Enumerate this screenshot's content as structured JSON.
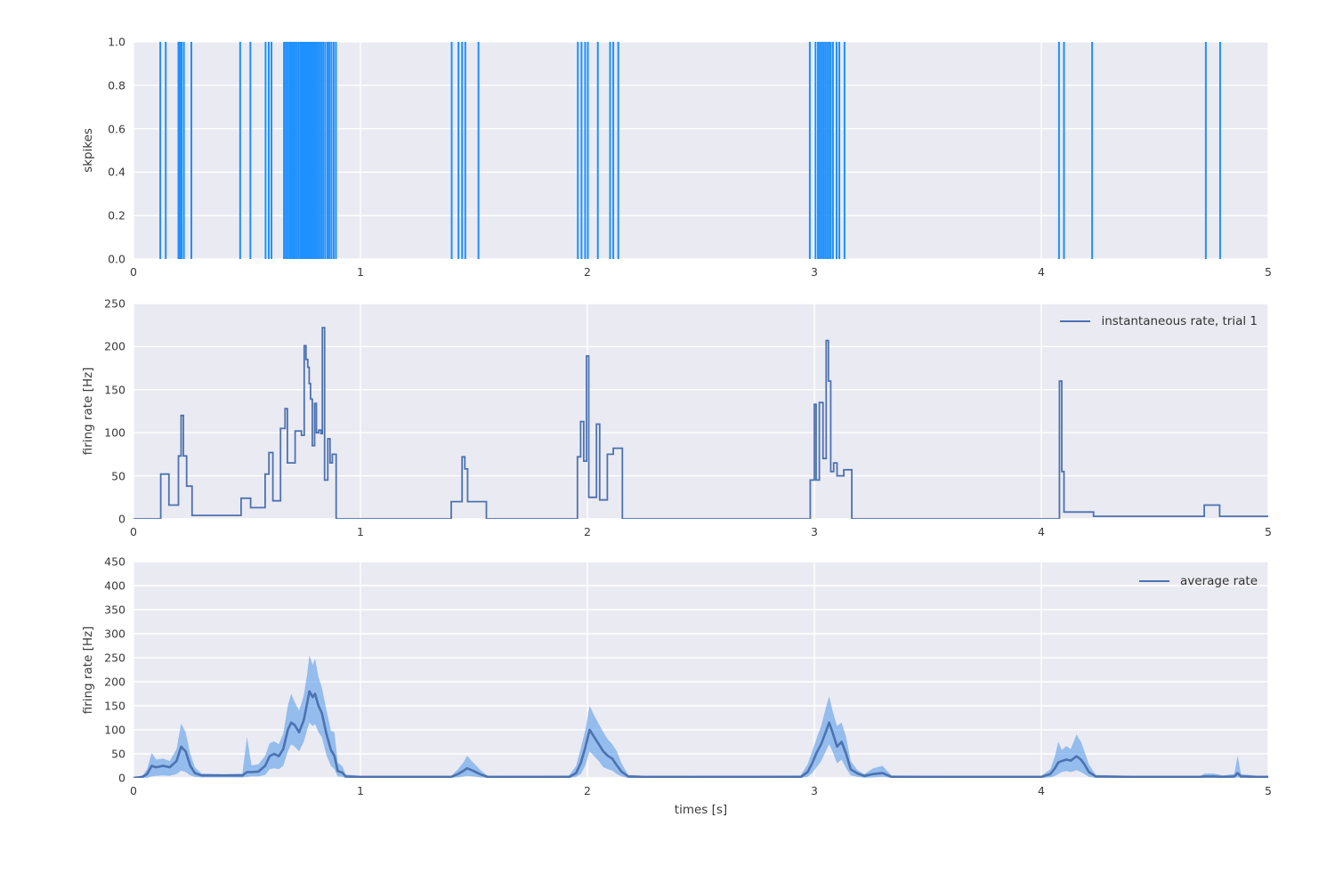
{
  "figure": {
    "background": "#ffffff",
    "axes_background": "#eaeaf2",
    "grid_color": "#ffffff",
    "tick_label_color": "#3a3a3a",
    "axis_label_color": "#3a3a3a",
    "legend_text_color": "#333333"
  },
  "chart_data": [
    {
      "type": "line",
      "subtype": "event-raster",
      "title": "",
      "xlabel": "",
      "ylabel": "skpikes",
      "xlim": [
        0,
        5
      ],
      "ylim": [
        0,
        1
      ],
      "xticks": [
        0,
        1,
        2,
        3,
        4,
        5
      ],
      "xtick_labels": [
        "0",
        "1",
        "2",
        "3",
        "4",
        "5"
      ],
      "yticks": [
        0.0,
        0.2,
        0.4,
        0.6,
        0.8,
        1.0
      ],
      "ytick_labels": [
        "0.0",
        "0.2",
        "0.4",
        "0.6",
        "0.8",
        "1.0"
      ],
      "grid": true,
      "line_color": "#1e90ff",
      "spike_times": [
        0.118,
        0.142,
        0.198,
        0.205,
        0.212,
        0.222,
        0.255,
        0.47,
        0.515,
        0.582,
        0.596,
        0.608,
        0.663,
        0.671,
        0.679,
        0.687,
        0.694,
        0.702,
        0.71,
        0.718,
        0.726,
        0.734,
        0.74,
        0.746,
        0.752,
        0.757,
        0.762,
        0.767,
        0.772,
        0.778,
        0.784,
        0.79,
        0.797,
        0.804,
        0.812,
        0.82,
        0.828,
        0.836,
        0.845,
        0.855,
        0.863,
        0.872,
        0.882,
        0.892,
        1.402,
        1.432,
        1.448,
        1.462,
        1.52,
        1.958,
        1.974,
        1.99,
        2.002,
        2.046,
        2.1,
        2.114,
        2.136,
        2.98,
        3.005,
        3.016,
        3.024,
        3.032,
        3.04,
        3.048,
        3.056,
        3.064,
        3.072,
        3.082,
        3.098,
        3.11,
        3.133,
        4.078,
        4.1,
        4.224,
        4.725,
        4.788
      ]
    },
    {
      "type": "line",
      "subtype": "step-post",
      "title": "",
      "xlabel": "",
      "ylabel": "firing rate [Hz]",
      "legend": [
        "instantaneous rate, trial 1"
      ],
      "legend_position": "upper right",
      "xlim": [
        0,
        5
      ],
      "ylim": [
        0,
        250
      ],
      "xticks": [
        0,
        1,
        2,
        3,
        4,
        5
      ],
      "xtick_labels": [
        "0",
        "1",
        "2",
        "3",
        "4",
        "5"
      ],
      "yticks": [
        0,
        50,
        100,
        150,
        200,
        250
      ],
      "ytick_labels": [
        "0",
        "50",
        "100",
        "150",
        "200",
        "250"
      ],
      "grid": true,
      "line_color": "#4c72b0",
      "steps": [
        [
          0,
          0
        ],
        [
          0.12,
          52
        ],
        [
          0.156,
          16
        ],
        [
          0.198,
          73
        ],
        [
          0.21,
          120
        ],
        [
          0.22,
          73
        ],
        [
          0.234,
          38
        ],
        [
          0.258,
          4
        ],
        [
          0.474,
          24
        ],
        [
          0.516,
          13
        ],
        [
          0.58,
          52
        ],
        [
          0.597,
          77
        ],
        [
          0.614,
          21
        ],
        [
          0.648,
          105
        ],
        [
          0.668,
          128
        ],
        [
          0.678,
          65
        ],
        [
          0.712,
          102
        ],
        [
          0.74,
          97
        ],
        [
          0.752,
          201
        ],
        [
          0.76,
          185
        ],
        [
          0.768,
          176
        ],
        [
          0.774,
          157
        ],
        [
          0.78,
          139
        ],
        [
          0.788,
          85
        ],
        [
          0.798,
          134
        ],
        [
          0.806,
          100
        ],
        [
          0.816,
          103
        ],
        [
          0.826,
          99
        ],
        [
          0.832,
          222
        ],
        [
          0.842,
          45
        ],
        [
          0.856,
          93
        ],
        [
          0.866,
          65
        ],
        [
          0.876,
          75
        ],
        [
          0.893,
          0
        ],
        [
          1.4,
          20
        ],
        [
          1.448,
          72
        ],
        [
          1.46,
          58
        ],
        [
          1.472,
          20
        ],
        [
          1.555,
          0
        ],
        [
          1.956,
          72
        ],
        [
          1.97,
          113
        ],
        [
          1.984,
          67
        ],
        [
          1.996,
          189
        ],
        [
          2.006,
          25
        ],
        [
          2.04,
          110
        ],
        [
          2.054,
          22
        ],
        [
          2.088,
          75
        ],
        [
          2.114,
          82
        ],
        [
          2.154,
          0
        ],
        [
          2.982,
          45
        ],
        [
          3.0,
          133
        ],
        [
          3.008,
          45
        ],
        [
          3.022,
          135
        ],
        [
          3.038,
          70
        ],
        [
          3.052,
          207
        ],
        [
          3.062,
          160
        ],
        [
          3.072,
          55
        ],
        [
          3.085,
          65
        ],
        [
          3.1,
          50
        ],
        [
          3.13,
          57
        ],
        [
          3.165,
          0
        ],
        [
          4.08,
          160
        ],
        [
          4.09,
          55
        ],
        [
          4.1,
          8
        ],
        [
          4.23,
          3
        ],
        [
          4.718,
          16
        ],
        [
          4.786,
          3
        ],
        [
          5.0,
          3
        ]
      ]
    },
    {
      "type": "area",
      "subtype": "mean-with-band",
      "title": "",
      "xlabel": "times [s]",
      "ylabel": "firing rate [Hz]",
      "legend": [
        "average rate"
      ],
      "legend_position": "upper right",
      "xlim": [
        0,
        5
      ],
      "ylim": [
        0,
        450
      ],
      "xticks": [
        0,
        1,
        2,
        3,
        4,
        5
      ],
      "xtick_labels": [
        "0",
        "1",
        "2",
        "3",
        "4",
        "5"
      ],
      "yticks": [
        0,
        50,
        100,
        150,
        200,
        250,
        300,
        350,
        400,
        450
      ],
      "ytick_labels": [
        "0",
        "50",
        "100",
        "150",
        "200",
        "250",
        "300",
        "350",
        "400",
        "450"
      ],
      "grid": true,
      "line_color": "#4c72b0",
      "band_color": "#3d8de8",
      "band_opacity": 0.5,
      "points": [
        [
          0.0,
          0,
          0,
          0
        ],
        [
          0.04,
          2,
          0,
          5
        ],
        [
          0.06,
          8,
          0,
          18
        ],
        [
          0.08,
          25,
          3,
          52
        ],
        [
          0.1,
          22,
          4,
          38
        ],
        [
          0.13,
          25,
          5,
          40
        ],
        [
          0.16,
          22,
          4,
          35
        ],
        [
          0.19,
          35,
          8,
          60
        ],
        [
          0.21,
          65,
          15,
          113
        ],
        [
          0.23,
          55,
          12,
          95
        ],
        [
          0.25,
          25,
          5,
          50
        ],
        [
          0.27,
          10,
          2,
          22
        ],
        [
          0.3,
          5,
          1,
          9
        ],
        [
          0.4,
          5,
          1,
          8
        ],
        [
          0.48,
          5,
          1,
          9
        ],
        [
          0.5,
          12,
          2,
          85
        ],
        [
          0.52,
          12,
          3,
          26
        ],
        [
          0.55,
          13,
          3,
          28
        ],
        [
          0.58,
          25,
          6,
          46
        ],
        [
          0.6,
          45,
          18,
          72
        ],
        [
          0.62,
          50,
          20,
          76
        ],
        [
          0.64,
          45,
          18,
          70
        ],
        [
          0.66,
          60,
          25,
          92
        ],
        [
          0.68,
          100,
          55,
          150
        ],
        [
          0.695,
          115,
          70,
          175
        ],
        [
          0.71,
          110,
          65,
          158
        ],
        [
          0.73,
          95,
          55,
          140
        ],
        [
          0.75,
          120,
          75,
          172
        ],
        [
          0.765,
          155,
          100,
          215
        ],
        [
          0.775,
          180,
          115,
          255
        ],
        [
          0.79,
          168,
          108,
          235
        ],
        [
          0.8,
          175,
          112,
          248
        ],
        [
          0.815,
          150,
          95,
          210
        ],
        [
          0.83,
          135,
          85,
          188
        ],
        [
          0.85,
          92,
          48,
          142
        ],
        [
          0.87,
          58,
          25,
          98
        ],
        [
          0.885,
          46,
          18,
          95
        ],
        [
          0.9,
          14,
          3,
          32
        ],
        [
          0.92,
          11,
          2,
          24
        ],
        [
          0.935,
          3,
          0,
          7
        ],
        [
          1.0,
          2,
          0,
          4
        ],
        [
          1.4,
          2,
          0,
          4
        ],
        [
          1.43,
          8,
          1,
          18
        ],
        [
          1.455,
          15,
          3,
          33
        ],
        [
          1.47,
          20,
          4,
          46
        ],
        [
          1.5,
          14,
          3,
          30
        ],
        [
          1.53,
          7,
          1,
          16
        ],
        [
          1.56,
          2,
          0,
          4
        ],
        [
          1.92,
          2,
          0,
          5
        ],
        [
          1.95,
          10,
          2,
          25
        ],
        [
          1.97,
          30,
          8,
          60
        ],
        [
          1.99,
          62,
          25,
          98
        ],
        [
          2.01,
          100,
          55,
          150
        ],
        [
          2.03,
          85,
          45,
          130
        ],
        [
          2.05,
          70,
          35,
          112
        ],
        [
          2.07,
          55,
          22,
          95
        ],
        [
          2.09,
          46,
          18,
          80
        ],
        [
          2.11,
          40,
          15,
          70
        ],
        [
          2.13,
          26,
          8,
          55
        ],
        [
          2.15,
          13,
          3,
          30
        ],
        [
          2.18,
          3,
          0,
          6
        ],
        [
          2.25,
          2,
          0,
          4
        ],
        [
          2.94,
          2,
          0,
          5
        ],
        [
          2.97,
          12,
          2,
          28
        ],
        [
          2.99,
          30,
          10,
          55
        ],
        [
          3.01,
          52,
          22,
          82
        ],
        [
          3.03,
          70,
          35,
          108
        ],
        [
          3.05,
          95,
          55,
          145
        ],
        [
          3.065,
          115,
          70,
          170
        ],
        [
          3.08,
          95,
          55,
          140
        ],
        [
          3.1,
          65,
          30,
          108
        ],
        [
          3.12,
          75,
          38,
          115
        ],
        [
          3.14,
          50,
          20,
          85
        ],
        [
          3.16,
          18,
          5,
          35
        ],
        [
          3.19,
          9,
          2,
          16
        ],
        [
          3.22,
          4,
          0,
          8
        ],
        [
          3.26,
          8,
          1,
          20
        ],
        [
          3.3,
          10,
          2,
          25
        ],
        [
          3.34,
          2,
          0,
          5
        ],
        [
          3.6,
          2,
          0,
          4
        ],
        [
          4.0,
          2,
          0,
          4
        ],
        [
          4.04,
          8,
          1,
          18
        ],
        [
          4.06,
          20,
          4,
          45
        ],
        [
          4.075,
          32,
          8,
          75
        ],
        [
          4.09,
          35,
          12,
          58
        ],
        [
          4.11,
          38,
          14,
          66
        ],
        [
          4.13,
          36,
          12,
          60
        ],
        [
          4.155,
          45,
          16,
          90
        ],
        [
          4.175,
          38,
          12,
          75
        ],
        [
          4.19,
          28,
          8,
          55
        ],
        [
          4.21,
          12,
          2,
          28
        ],
        [
          4.24,
          3,
          0,
          6
        ],
        [
          4.4,
          2,
          0,
          4
        ],
        [
          4.7,
          2,
          0,
          4
        ],
        [
          4.72,
          3,
          0,
          9
        ],
        [
          4.76,
          3,
          0,
          9
        ],
        [
          4.8,
          2,
          0,
          5
        ],
        [
          4.85,
          3,
          0,
          8
        ],
        [
          4.865,
          10,
          1,
          46
        ],
        [
          4.88,
          3,
          0,
          8
        ],
        [
          4.95,
          2,
          0,
          4
        ],
        [
          5.0,
          2,
          0,
          4
        ]
      ]
    }
  ]
}
